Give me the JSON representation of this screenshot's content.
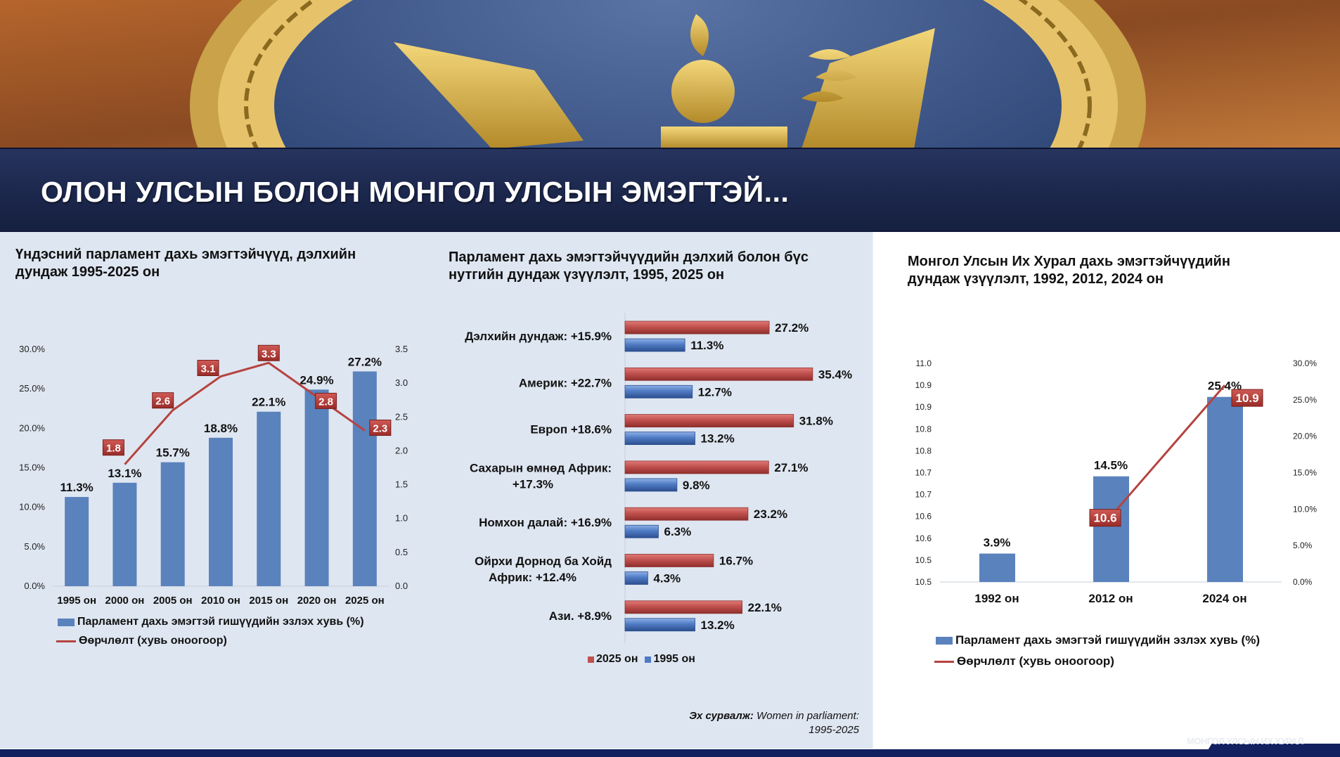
{
  "header": {
    "title": "ОЛОН УЛСЫН БОЛОН МОНГОЛ УЛСЫН ЭМЭГТЭЙ..."
  },
  "colors": {
    "bar_blue": "#5a82bd",
    "bar_red": "#c0504d",
    "line_red": "#b5433f",
    "navy": "#1b264b",
    "panel": "#dee6f1"
  },
  "footer": {
    "watermark": "МОНГОЛ УЛСЫН ИХ ХУРАЛ"
  },
  "chart_data": [
    {
      "type": "bar+line",
      "title": "Үндэсний парламент дахь эмэгтэйчүүд, дэлхийн дундаж 1995-2025 он",
      "title_lines": [
        "Үндэсний парламент дахь эмэгтэйчүүд, дэлхийн",
        "дундаж 1995-2025 он"
      ],
      "categories": [
        "1995 он",
        "2000 он",
        "2005 он",
        "2010 он",
        "2015 он",
        "2020 он",
        "2025 он"
      ],
      "series": [
        {
          "name": "Парламент дахь эмэгтэй гишүүдийн эзлэх хувь (%)",
          "type": "bar",
          "axis": "left",
          "values": [
            11.3,
            13.1,
            15.7,
            18.8,
            22.1,
            24.9,
            27.2
          ],
          "labels": [
            "11.3%",
            "13.1%",
            "15.7%",
            "18.8%",
            "22.1%",
            "24.9%",
            "27.2%"
          ]
        },
        {
          "name": "Өөрчлөлт (хувь оноогоор)",
          "type": "line",
          "axis": "right",
          "values": [
            null,
            1.8,
            2.6,
            3.1,
            3.3,
            2.8,
            2.3
          ],
          "labels": [
            null,
            "1.8",
            "2.6",
            "3.1",
            "3.3",
            "2.8",
            "2.3"
          ]
        }
      ],
      "ylim_left": [
        0,
        30
      ],
      "yticks_left": [
        "0.0%",
        "5.0%",
        "10.0%",
        "15.0%",
        "20.0%",
        "25.0%",
        "30.0%"
      ],
      "ylim_right": [
        0,
        3.5
      ],
      "yticks_right": [
        "0.0",
        "0.5",
        "1.0",
        "1.5",
        "2.0",
        "2.5",
        "3.0",
        "3.5"
      ],
      "legend": "bottom-left",
      "grid": false
    },
    {
      "type": "bar",
      "orientation": "horizontal",
      "title": "Парламент дахь эмэгтэйчүүдийн дэлхий болон бүс нутгийн дундаж үзүүлэлт, 1995, 2025 он",
      "title_lines": [
        "Парламент дахь эмэгтэйчүүдийн дэлхий болон бүс",
        "нутгийн дундаж үзүүлэлт, 1995, 2025 он"
      ],
      "categories": [
        [
          "Дэлхийн дундаж: +15.9%"
        ],
        [
          "Америк: +22.7%"
        ],
        [
          "Европ +18.6%"
        ],
        [
          "Сахарын өмнөд Африк:",
          "+17.3%"
        ],
        [
          "Номхон далай: +16.9%"
        ],
        [
          "Ойрхи Дорнод ба Хойд",
          "Африк: +12.4%"
        ],
        [
          "Ази. +8.9%"
        ]
      ],
      "series": [
        {
          "name": "2025 он",
          "values": [
            27.2,
            35.4,
            31.8,
            27.1,
            23.2,
            16.7,
            22.1
          ],
          "labels": [
            "27.2%",
            "35.4%",
            "31.8%",
            "27.1%",
            "23.2%",
            "16.7%",
            "22.1%"
          ]
        },
        {
          "name": "1995 он",
          "values": [
            11.3,
            12.7,
            13.2,
            9.8,
            6.3,
            4.3,
            13.2
          ],
          "labels": [
            "11.3%",
            "12.7%",
            "13.2%",
            "9.8%",
            "6.3%",
            "4.3%",
            "13.2%"
          ]
        }
      ],
      "legend": "bottom",
      "source_label": "Эх сурвалж:",
      "source_text_1": "Women in parliament:",
      "source_text_2": "1995-2025"
    },
    {
      "type": "bar+line",
      "title": "Монгол Улсын Их Хурал дахь эмэгтэйчүүдийн дундаж үзүүлэлт, 1992, 2012, 2024 он",
      "title_lines": [
        "Монгол Улсын Их Хурал дахь эмэгтэйчүүдийн",
        "дундаж үзүүлэлт, 1992, 2012, 2024 он"
      ],
      "categories": [
        "1992 он",
        "2012 он",
        "2024 он"
      ],
      "series": [
        {
          "name": "Парламент дахь эмэгтэй гишүүдийн эзлэх хувь (%)",
          "type": "bar",
          "axis": "right",
          "values": [
            3.9,
            14.5,
            25.4
          ],
          "labels": [
            "3.9%",
            "14.5%",
            "25.4%"
          ]
        },
        {
          "name": "Өөрчлөлт (хувь оноогоор)",
          "type": "line",
          "axis": "left",
          "values": [
            null,
            10.6,
            10.9
          ],
          "labels": [
            null,
            "10.6",
            "10.9"
          ]
        }
      ],
      "ylim_left": [
        10.45,
        10.95
      ],
      "yticks_left": [
        "10.5",
        "10.5",
        "10.6",
        "10.6",
        "10.7",
        "10.7",
        "10.8",
        "10.8",
        "10.9",
        "10.9",
        "11.0"
      ],
      "ylim_right": [
        0,
        30
      ],
      "yticks_right": [
        "0.0%",
        "5.0%",
        "10.0%",
        "15.0%",
        "20.0%",
        "25.0%",
        "30.0%"
      ],
      "legend": "bottom-left",
      "grid": false
    }
  ]
}
